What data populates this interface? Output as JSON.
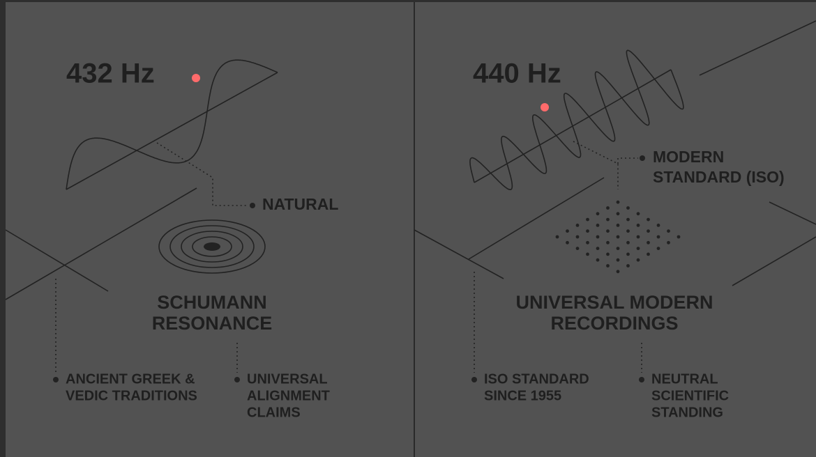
{
  "panels": [
    {
      "frequency": "432 Hz",
      "callout": [
        "NATURAL"
      ],
      "heading": [
        "SCHUMANN",
        "RESONANCE"
      ],
      "notes": [
        [
          "ANCIENT GREEK &",
          "VEDIC TRADITIONS"
        ],
        [
          "UNIVERSAL",
          "ALIGNMENT",
          "CLAIMS"
        ]
      ]
    },
    {
      "frequency": "440 Hz",
      "callout": [
        "MODERN",
        "STANDARD (ISO)"
      ],
      "heading": [
        "UNIVERSAL MODERN",
        "RECORDINGS"
      ],
      "notes": [
        [
          "ISO STANDARD",
          "SINCE 1955"
        ],
        [
          "NEUTRAL",
          "SCIENTIFIC",
          "STANDING"
        ]
      ]
    }
  ]
}
